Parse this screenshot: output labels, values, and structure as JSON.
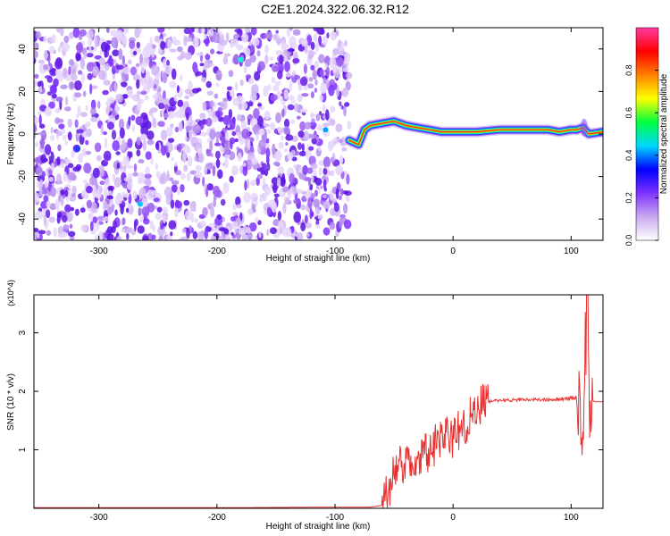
{
  "title": "C2E1.2024.322.06.32.R12",
  "chart_data": [
    {
      "type": "heatmap",
      "xlabel": "Height of straight line (km)",
      "ylabel": "Frequency (Hz)",
      "xlim": [
        -355,
        127
      ],
      "ylim": [
        -50,
        50
      ],
      "xticks": [
        -300,
        -200,
        -100,
        0,
        100
      ],
      "yticks": [
        -40,
        -20,
        0,
        20,
        40
      ],
      "colorbar": {
        "label": "Normalized spectral amplitude",
        "range": [
          0,
          1
        ],
        "ticks": [
          "0.0",
          "0.2",
          "0.4",
          "0.6",
          "0.8"
        ],
        "colors": [
          "#ffffff",
          "#c8a8f0",
          "#7f33ff",
          "#0000ff",
          "#00d8ff",
          "#00ff40",
          "#ffff00",
          "#ff8000",
          "#ff0000",
          "#ff3aa0"
        ]
      },
      "features": {
        "noise_region_x": [
          -355,
          -88
        ],
        "signal_trace": {
          "x": [
            -88,
            -80,
            -75,
            -70,
            -60,
            -50,
            -40,
            -30,
            -20,
            -10,
            0,
            20,
            40,
            60,
            80,
            90,
            100,
            105,
            110,
            115,
            127
          ],
          "y": [
            -3,
            -5,
            2,
            4,
            5,
            6,
            4,
            3,
            2,
            1,
            1,
            1,
            2,
            2,
            2,
            1,
            2,
            2,
            3,
            0,
            1
          ]
        }
      }
    },
    {
      "type": "line",
      "xlabel": "Height of straight line (km)",
      "ylabel": "SNR (10 * v/v)",
      "yscale_label": "(x10^4)",
      "xlim": [
        -355,
        127
      ],
      "ylim": [
        0,
        3.65
      ],
      "xticks": [
        -300,
        -200,
        -100,
        0,
        100
      ],
      "yticks": [
        1,
        2,
        3
      ],
      "line_color": "#e83030",
      "series": [
        {
          "x": [
            -355,
            -300,
            -200,
            -100,
            -70,
            -60,
            -55,
            -50,
            -45,
            -40,
            -35,
            -30,
            -25,
            -20,
            -15,
            -10,
            -5,
            0,
            5,
            10,
            15,
            20,
            25,
            30,
            35,
            40,
            50,
            60,
            70,
            80,
            90,
            100,
            105,
            108,
            110,
            112,
            114,
            116,
            118,
            120,
            127
          ],
          "y": [
            0.01,
            0.01,
            0.01,
            0.02,
            0.02,
            0.05,
            0.3,
            0.6,
            0.8,
            0.7,
            0.8,
            0.8,
            1.0,
            0.9,
            1.1,
            1.2,
            1.3,
            1.2,
            1.35,
            1.4,
            1.6,
            1.7,
            1.8,
            1.82,
            1.84,
            1.85,
            1.85,
            1.86,
            1.86,
            1.86,
            1.87,
            1.88,
            1.9,
            2.0,
            1.5,
            2.6,
            3.4,
            1.8,
            1.85,
            1.82,
            1.82
          ]
        }
      ]
    }
  ]
}
